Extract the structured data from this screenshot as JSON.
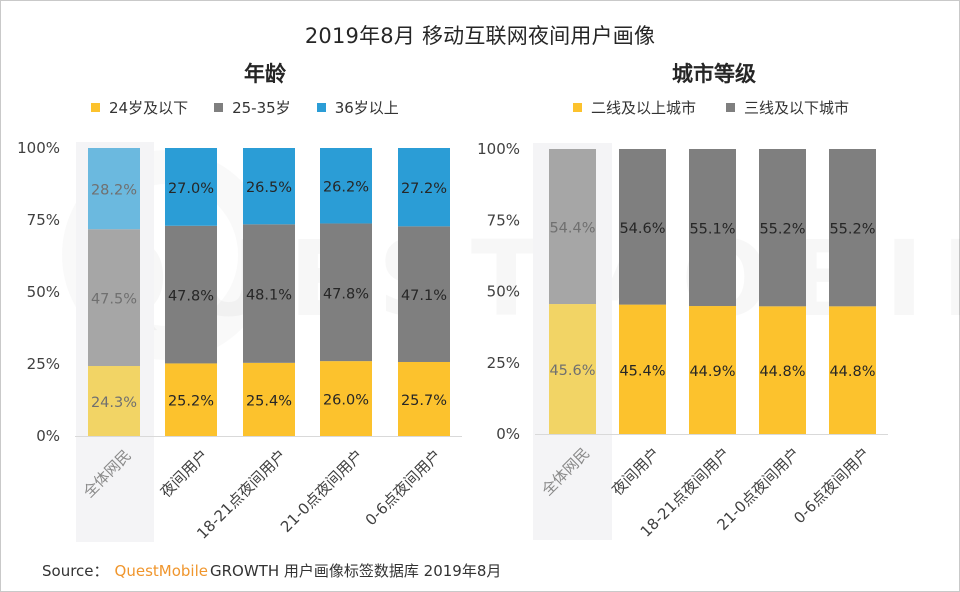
{
  "page": {
    "title": "2019年8月 移动互联网夜间用户画像",
    "source_label": "Source：",
    "source_brand": "QuestMobile",
    "source_rest": "GROWTH 用户画像标签数据库 2019年8月",
    "watermark": "QUESTMOBILE"
  },
  "colors": {
    "yellow": "#FCC22D",
    "gray": "#7F7F7F",
    "blue": "#2B9DD6",
    "yellow_highlight": "#F2D465",
    "gray_highlight": "#A6A6A6",
    "blue_highlight": "#6BB9DF",
    "highlight_band": "#F4F4F6",
    "source_brand": "#F0962D"
  },
  "chart_data": [
    {
      "type": "bar",
      "stacked": true,
      "title": "年龄",
      "legend_position": "top",
      "categories": [
        "全体网民",
        "夜间用户",
        "18-21点夜间用户",
        "21-0点夜间用户",
        "0-6点夜间用户"
      ],
      "highlighted_category": "全体网民",
      "series": [
        {
          "name": "24岁及以下",
          "color_key": "yellow",
          "values": [
            24.3,
            25.2,
            25.4,
            26.0,
            25.7
          ],
          "labels": [
            "24.3%",
            "25.2%",
            "25.4%",
            "26.0%",
            "25.7%"
          ]
        },
        {
          "name": "25-35岁",
          "color_key": "gray",
          "values": [
            47.5,
            47.8,
            48.1,
            47.8,
            47.1
          ],
          "labels": [
            "47.5%",
            "47.8%",
            "48.1%",
            "47.8%",
            "47.1%"
          ]
        },
        {
          "name": "36岁以上",
          "color_key": "blue",
          "values": [
            28.2,
            27.0,
            26.5,
            26.2,
            27.2
          ],
          "labels": [
            "28.2%",
            "27.0%",
            "26.5%",
            "26.2%",
            "27.2%"
          ]
        }
      ],
      "xlabel": "",
      "ylabel": "",
      "ylim": [
        0,
        100
      ],
      "yticks": [
        "0%",
        "25%",
        "50%",
        "75%",
        "100%"
      ],
      "grid": false
    },
    {
      "type": "bar",
      "stacked": true,
      "title": "城市等级",
      "legend_position": "top",
      "categories": [
        "全体网民",
        "夜间用户",
        "18-21点夜间用户",
        "21-0点夜间用户",
        "0-6点夜间用户"
      ],
      "highlighted_category": "全体网民",
      "series": [
        {
          "name": "二线及以上城市",
          "color_key": "yellow",
          "values": [
            45.6,
            45.4,
            44.9,
            44.8,
            44.8
          ],
          "labels": [
            "45.6%",
            "45.4%",
            "44.9%",
            "44.8%",
            "44.8%"
          ]
        },
        {
          "name": "三线及以下城市",
          "color_key": "gray",
          "values": [
            54.4,
            54.6,
            55.1,
            55.2,
            55.2
          ],
          "labels": [
            "54.4%",
            "54.6%",
            "55.1%",
            "55.2%",
            "55.2%"
          ]
        }
      ],
      "xlabel": "",
      "ylabel": "",
      "ylim": [
        0,
        100
      ],
      "yticks": [
        "0%",
        "25%",
        "50%",
        "75%",
        "100%"
      ],
      "grid": false
    }
  ]
}
